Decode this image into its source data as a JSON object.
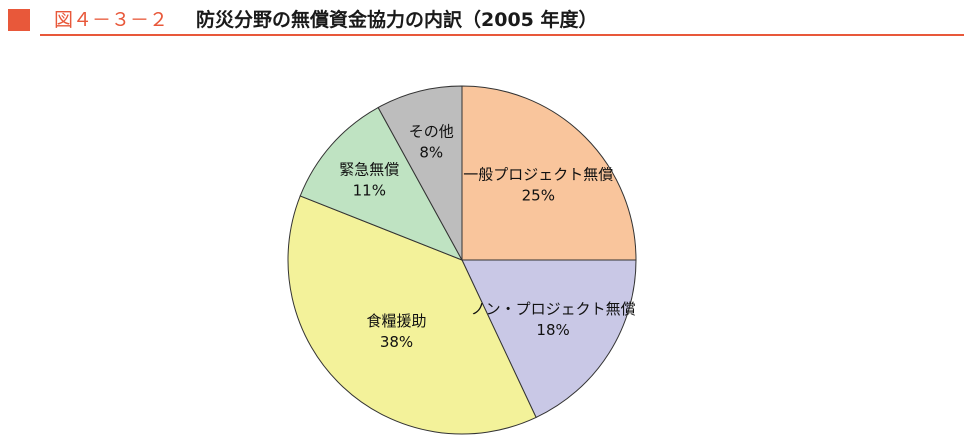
{
  "header": {
    "figure_number": "図４－３－２",
    "title": "防災分野の無償資金協力の内訳（2005 年度）"
  },
  "colors": {
    "accent": "#e8583a",
    "outline": "#333333"
  },
  "chart_data": {
    "type": "pie",
    "start_angle_deg": 0,
    "direction": "clockwise",
    "slices": [
      {
        "name": "一般プロジェクト無償",
        "value": 25,
        "label": "25%",
        "color": "#f9c59c"
      },
      {
        "name": "ノン・プロジェクト無償",
        "value": 18,
        "label": "18%",
        "color": "#c9c8e6"
      },
      {
        "name": "食糧援助",
        "value": 38,
        "label": "38%",
        "color": "#f3f29a"
      },
      {
        "name": "緊急無償",
        "value": 11,
        "label": "11%",
        "color": "#bfe3c2"
      },
      {
        "name": "その他",
        "value": 8,
        "label": "8%",
        "color": "#bdbdbd"
      }
    ]
  }
}
